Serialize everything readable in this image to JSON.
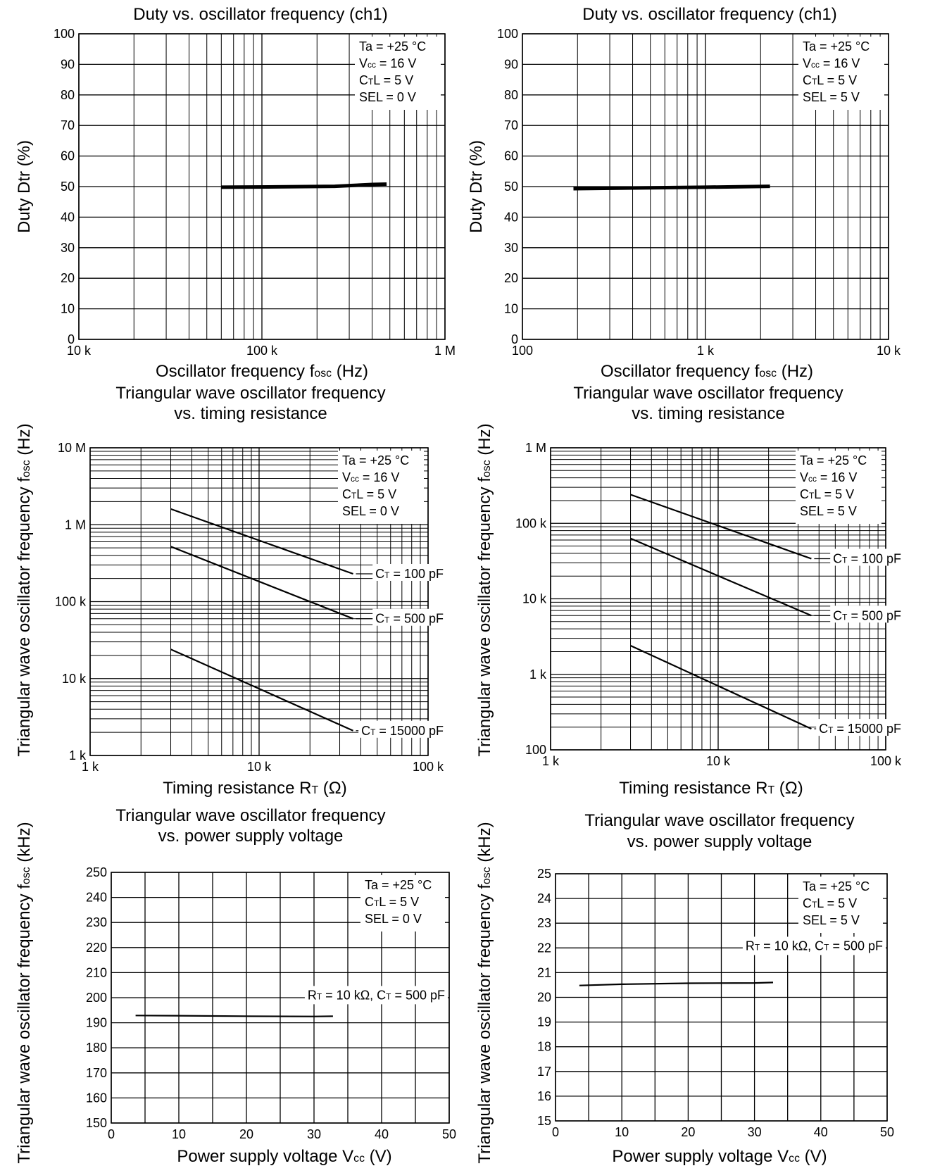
{
  "chart_data": [
    {
      "id": "c1",
      "type": "line",
      "title_lines": [
        "Duty vs. oscillator frequency (ch1)"
      ],
      "xlabel": "Oscillator frequency fosc (Hz)",
      "ylabel": "Duty Dtr (%)",
      "x_scale": "log",
      "y_scale": "linear",
      "xlim": [
        10000,
        1000000
      ],
      "ylim": [
        0,
        100
      ],
      "grid": true,
      "x_ticks": [
        {
          "value": 10000,
          "label": "10 k"
        },
        {
          "value": 100000,
          "label": "100 k"
        },
        {
          "value": 1000000,
          "label": "1 M"
        }
      ],
      "y_ticks": [
        {
          "value": 0,
          "label": "0"
        },
        {
          "value": 10,
          "label": "10"
        },
        {
          "value": 20,
          "label": "20"
        },
        {
          "value": 30,
          "label": "30"
        },
        {
          "value": 40,
          "label": "40"
        },
        {
          "value": 50,
          "label": "50"
        },
        {
          "value": 60,
          "label": "60"
        },
        {
          "value": 70,
          "label": "70"
        },
        {
          "value": 80,
          "label": "80"
        },
        {
          "value": 90,
          "label": "90"
        },
        {
          "value": 100,
          "label": "100"
        }
      ],
      "conditions": [
        "Ta = +25 °C",
        "Vcc = 16 V",
        "CTL = 5 V",
        "SEL = 0 V"
      ],
      "conditions_position": "top-right",
      "series": [
        {
          "x": [
            60000,
            120000,
            250000,
            400000,
            480000
          ],
          "y": [
            49.8,
            49.9,
            50.1,
            50.7,
            50.8
          ],
          "width": 5
        }
      ]
    },
    {
      "id": "c2",
      "type": "line",
      "title_lines": [
        "Duty vs. oscillator frequency (ch1)"
      ],
      "xlabel": "Oscillator frequency fosc (Hz)",
      "ylabel": "Duty Dtr (%)",
      "x_scale": "log",
      "y_scale": "linear",
      "xlim": [
        100,
        10000
      ],
      "ylim": [
        0,
        100
      ],
      "grid": true,
      "x_ticks": [
        {
          "value": 100,
          "label": "100"
        },
        {
          "value": 1000,
          "label": "1 k"
        },
        {
          "value": 10000,
          "label": "10 k"
        }
      ],
      "y_ticks": [
        {
          "value": 0,
          "label": "0"
        },
        {
          "value": 10,
          "label": "10"
        },
        {
          "value": 20,
          "label": "20"
        },
        {
          "value": 30,
          "label": "30"
        },
        {
          "value": 40,
          "label": "40"
        },
        {
          "value": 50,
          "label": "50"
        },
        {
          "value": 60,
          "label": "60"
        },
        {
          "value": 70,
          "label": "70"
        },
        {
          "value": 80,
          "label": "80"
        },
        {
          "value": 90,
          "label": "90"
        },
        {
          "value": 100,
          "label": "100"
        }
      ],
      "conditions": [
        "Ta = +25 °C",
        "Vcc = 16 V",
        "CTL = 5 V",
        "SEL = 5 V"
      ],
      "conditions_position": "top-right",
      "series": [
        {
          "x": [
            190,
            500,
            1000,
            2250
          ],
          "y": [
            49.3,
            49.6,
            49.8,
            50.1
          ],
          "width": 5
        }
      ]
    },
    {
      "id": "c3",
      "type": "line",
      "title_lines": [
        "Triangular wave oscillator frequency",
        "vs. timing resistance"
      ],
      "xlabel": "Timing resistance RT (Ω)",
      "ylabel": "Triangular wave oscillator frequency fosc (Hz)",
      "x_scale": "log",
      "y_scale": "log",
      "xlim": [
        1000,
        100000
      ],
      "ylim": [
        1000,
        10000000
      ],
      "grid": true,
      "x_ticks": [
        {
          "value": 1000,
          "label": "1 k"
        },
        {
          "value": 10000,
          "label": "10 k"
        },
        {
          "value": 100000,
          "label": "100 k"
        }
      ],
      "y_ticks": [
        {
          "value": 1000,
          "label": "1 k"
        },
        {
          "value": 10000,
          "label": "10 k"
        },
        {
          "value": 100000,
          "label": "100 k"
        },
        {
          "value": 1000000,
          "label": "1 M"
        },
        {
          "value": 10000000,
          "label": "10 M"
        }
      ],
      "conditions": [
        "Ta = +25 °C",
        "Vcc = 16 V",
        "CTL = 5 V",
        "SEL = 0 V"
      ],
      "conditions_position": "top-right",
      "series": [
        {
          "name": "CT = 100 pF",
          "x": [
            3000,
            36000
          ],
          "y": [
            1600000,
            230000
          ],
          "width": 2.2
        },
        {
          "name": "CT = 500 pF",
          "x": [
            3000,
            36000
          ],
          "y": [
            520000,
            60000
          ],
          "width": 2.2
        },
        {
          "name": "CT = 15000 pF",
          "x": [
            3000,
            36000
          ],
          "y": [
            24000,
            2100
          ],
          "width": 2.2
        }
      ]
    },
    {
      "id": "c4",
      "type": "line",
      "title_lines": [
        "Triangular wave oscillator frequency",
        "vs. timing resistance"
      ],
      "xlabel": "Timing resistance RT (Ω)",
      "ylabel": "Triangular wave oscillator frequency fosc (Hz)",
      "x_scale": "log",
      "y_scale": "log",
      "xlim": [
        1000,
        100000
      ],
      "ylim": [
        100,
        1000000
      ],
      "grid": true,
      "x_ticks": [
        {
          "value": 1000,
          "label": "1 k"
        },
        {
          "value": 10000,
          "label": "10 k"
        },
        {
          "value": 100000,
          "label": "100 k"
        }
      ],
      "y_ticks": [
        {
          "value": 100,
          "label": "100"
        },
        {
          "value": 1000,
          "label": "1 k"
        },
        {
          "value": 10000,
          "label": "10 k"
        },
        {
          "value": 100000,
          "label": "100 k"
        },
        {
          "value": 1000000,
          "label": "1 M"
        }
      ],
      "conditions": [
        "Ta = +25 °C",
        "Vcc = 16 V",
        "CTL = 5 V",
        "SEL = 5 V"
      ],
      "conditions_position": "top-right",
      "series": [
        {
          "name": "CT = 100 pF",
          "x": [
            3000,
            36000
          ],
          "y": [
            240000,
            34000
          ],
          "width": 2.2
        },
        {
          "name": "CT = 500 pF",
          "x": [
            3000,
            36000
          ],
          "y": [
            63000,
            6000
          ],
          "width": 2.2
        },
        {
          "name": "CT = 15000 pF",
          "x": [
            3000,
            36000
          ],
          "y": [
            2400,
            190
          ],
          "width": 2.2
        }
      ]
    },
    {
      "id": "c5",
      "type": "line",
      "title_lines": [
        "Triangular wave oscillator frequency",
        "vs. power supply voltage"
      ],
      "xlabel": "Power supply voltage Vcc (V)",
      "ylabel": "Triangular wave oscillator frequency fosc (kHz)",
      "x_scale": "linear",
      "y_scale": "linear",
      "xlim": [
        0,
        50
      ],
      "ylim": [
        150,
        250
      ],
      "grid": true,
      "x_ticks": [
        {
          "value": 0,
          "label": "0"
        },
        {
          "value": 10,
          "label": "10"
        },
        {
          "value": 20,
          "label": "20"
        },
        {
          "value": 30,
          "label": "30"
        },
        {
          "value": 40,
          "label": "40"
        },
        {
          "value": 50,
          "label": "50"
        }
      ],
      "y_ticks": [
        {
          "value": 150,
          "label": "150"
        },
        {
          "value": 160,
          "label": "160"
        },
        {
          "value": 170,
          "label": "170"
        },
        {
          "value": 180,
          "label": "180"
        },
        {
          "value": 190,
          "label": "190"
        },
        {
          "value": 200,
          "label": "200"
        },
        {
          "value": 210,
          "label": "210"
        },
        {
          "value": 220,
          "label": "220"
        },
        {
          "value": 230,
          "label": "230"
        },
        {
          "value": 240,
          "label": "240"
        },
        {
          "value": 250,
          "label": "250"
        }
      ],
      "conditions": [
        "Ta = +25 °C",
        "CTL = 5 V",
        "SEL = 0 V"
      ],
      "conditions_position": "top-right",
      "series_label": "RT = 10 kΩ, CT = 500 pF",
      "series": [
        {
          "x": [
            3.6,
            10,
            20,
            30,
            32.8
          ],
          "y": [
            192.9,
            192.8,
            192.6,
            192.5,
            192.6
          ],
          "width": 2.2
        }
      ]
    },
    {
      "id": "c6",
      "type": "line",
      "title_lines": [
        "Triangular wave oscillator frequency",
        "vs. power supply voltage"
      ],
      "xlabel": "Power supply voltage Vcc (V)",
      "ylabel": "Triangular wave oscillator frequency fosc (kHz)",
      "x_scale": "linear",
      "y_scale": "linear",
      "xlim": [
        0,
        50
      ],
      "ylim": [
        15,
        25
      ],
      "grid": true,
      "x_ticks": [
        {
          "value": 0,
          "label": "0"
        },
        {
          "value": 10,
          "label": "10"
        },
        {
          "value": 20,
          "label": "20"
        },
        {
          "value": 30,
          "label": "30"
        },
        {
          "value": 40,
          "label": "40"
        },
        {
          "value": 50,
          "label": "50"
        }
      ],
      "y_ticks": [
        {
          "value": 15,
          "label": "15"
        },
        {
          "value": 16,
          "label": "16"
        },
        {
          "value": 17,
          "label": "17"
        },
        {
          "value": 18,
          "label": "18"
        },
        {
          "value": 19,
          "label": "19"
        },
        {
          "value": 20,
          "label": "20"
        },
        {
          "value": 21,
          "label": "21"
        },
        {
          "value": 22,
          "label": "22"
        },
        {
          "value": 23,
          "label": "23"
        },
        {
          "value": 24,
          "label": "24"
        },
        {
          "value": 25,
          "label": "25"
        }
      ],
      "conditions": [
        "Ta = +25 °C",
        "CTL = 5 V",
        "SEL = 5 V"
      ],
      "conditions_position": "top-right",
      "series_label": "RT = 10 kΩ, CT = 500 pF",
      "series": [
        {
          "x": [
            3.6,
            10,
            20,
            30,
            32.8
          ],
          "y": [
            20.48,
            20.53,
            20.57,
            20.58,
            20.6
          ],
          "width": 2.2
        }
      ]
    }
  ]
}
